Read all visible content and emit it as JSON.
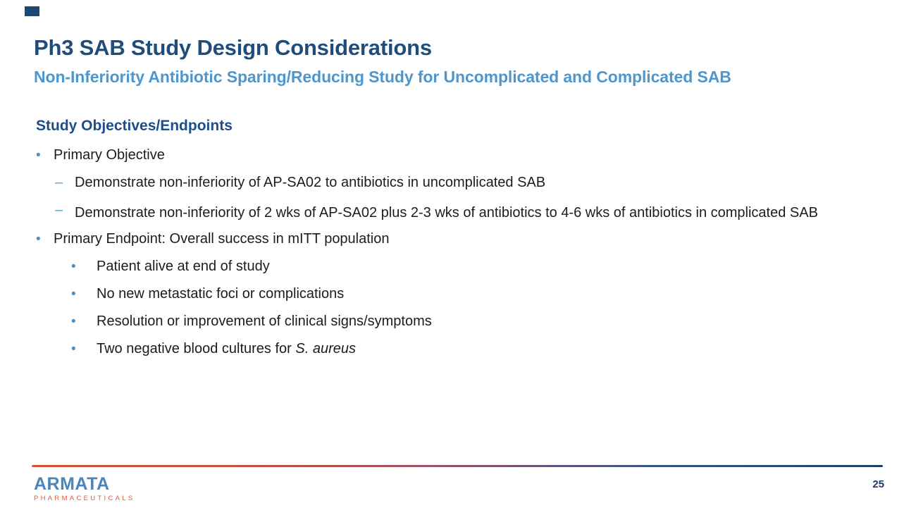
{
  "slide": {
    "title": "Ph3 SAB Study Design Considerations",
    "subtitle": "Non-Inferiority Antibiotic Sparing/Reducing Study for Uncomplicated and Complicated SAB",
    "section_heading": "Study Objectives/Endpoints",
    "page_number": "25"
  },
  "markers": {
    "dot": "•",
    "dash": "–"
  },
  "bullets": [
    {
      "level": 1,
      "marker": "dot",
      "text": "Primary Objective"
    },
    {
      "level": 2,
      "marker": "dash",
      "text": "Demonstrate non-inferiority of AP-SA02 to antibiotics in uncomplicated SAB"
    },
    {
      "level": 2,
      "marker": "dash",
      "text": "Demonstrate non-inferiority of 2 wks of AP-SA02 plus 2-3 wks of antibiotics to 4-6 wks of antibiotics in complicated SAB"
    },
    {
      "level": 1,
      "marker": "dot",
      "text": "Primary Endpoint: Overall success in mITT population"
    },
    {
      "level": 3,
      "marker": "dot",
      "text": "Patient alive at end of study"
    },
    {
      "level": 3,
      "marker": "dot",
      "text": "No new metastatic foci or complications"
    },
    {
      "level": 3,
      "marker": "dot",
      "text": "Resolution or improvement of clinical signs/symptoms"
    },
    {
      "level": 3,
      "marker": "dot",
      "text_prefix": "Two negative blood cultures for ",
      "text_italic": "S. aureus"
    }
  ],
  "logo": {
    "name": "ARMATA",
    "subtext": "PHARMACEUTICALS"
  },
  "colors": {
    "title_navy": "#1e4d7c",
    "subtitle_blue": "#4e96cc",
    "bullet_dot_blue": "#4b90c7",
    "bullet_dash_blue": "#58a3d8",
    "footer_gradient_start": "#d95330",
    "footer_gradient_end": "#1f4066",
    "logo_blue": "#4a86bb",
    "logo_orange": "#e25a3e"
  }
}
